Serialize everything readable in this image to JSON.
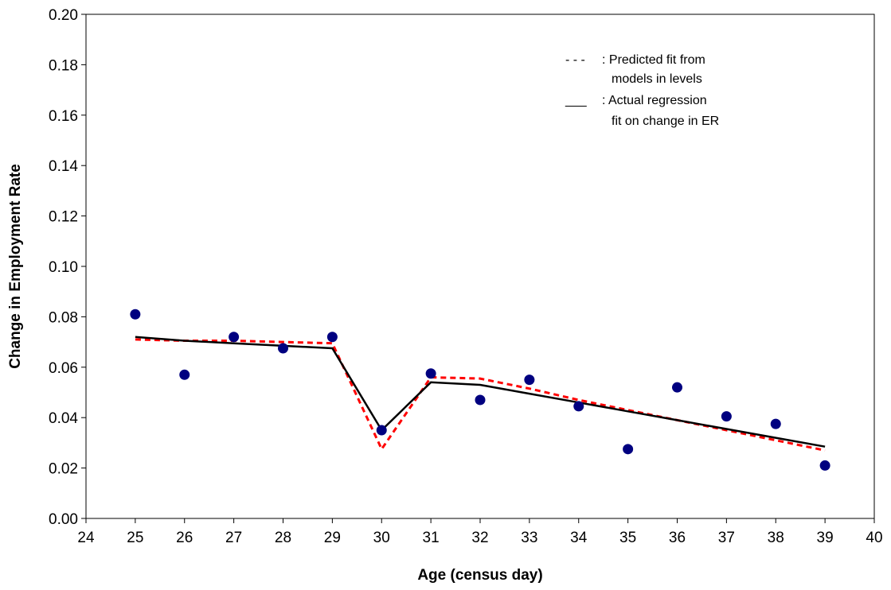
{
  "chart_data": {
    "type": "line",
    "title": "",
    "xlabel": "Age (census day)",
    "ylabel": "Change in Employment Rate",
    "xlim": [
      24,
      40
    ],
    "ylim": [
      0,
      0.2
    ],
    "x_ticks": [
      "24",
      "25",
      "26",
      "27",
      "28",
      "29",
      "30",
      "31",
      "32",
      "33",
      "34",
      "35",
      "36",
      "37",
      "38",
      "39",
      "40"
    ],
    "y_ticks": [
      "0.00",
      "0.02",
      "0.04",
      "0.06",
      "0.08",
      "0.10",
      "0.12",
      "0.14",
      "0.16",
      "0.18",
      "0.20"
    ],
    "grid": false,
    "legend_position": "top-right",
    "series": [
      {
        "kind": "scatter",
        "color": "#000080",
        "x": [
          25,
          26,
          27,
          28,
          29,
          30,
          31,
          32,
          33,
          34,
          35,
          36,
          37,
          38,
          39
        ],
        "y": [
          0.081,
          0.057,
          0.072,
          0.0675,
          0.072,
          0.035,
          0.0575,
          0.047,
          0.055,
          0.0445,
          0.0275,
          0.052,
          0.0405,
          0.0375,
          0.021
        ]
      },
      {
        "kind": "line",
        "style": "dashed",
        "color": "#ff0000",
        "x": [
          25,
          26,
          27,
          28,
          29,
          30,
          31,
          32,
          33,
          34,
          35,
          36,
          37,
          38,
          39
        ],
        "y": [
          0.071,
          0.0705,
          0.0705,
          0.07,
          0.0695,
          0.0275,
          0.056,
          0.0555,
          0.0515,
          0.047,
          0.043,
          0.039,
          0.035,
          0.031,
          0.027
        ]
      },
      {
        "kind": "line",
        "style": "solid",
        "color": "#000000",
        "x": [
          25,
          26,
          27,
          28,
          29,
          30,
          31,
          32,
          33,
          34,
          35,
          36,
          37,
          38,
          39
        ],
        "y": [
          0.072,
          0.0705,
          0.0695,
          0.0685,
          0.0675,
          0.035,
          0.054,
          0.053,
          0.0495,
          0.046,
          0.0425,
          0.039,
          0.0355,
          0.032,
          0.0285
        ]
      }
    ],
    "annotations": [
      {
        "marker": "- - -",
        "text_lines": [
          ": Predicted fit from",
          "models in levels"
        ]
      },
      {
        "marker": "___",
        "text_lines": [
          ": Actual regression",
          "fit on change in ER"
        ]
      }
    ]
  }
}
